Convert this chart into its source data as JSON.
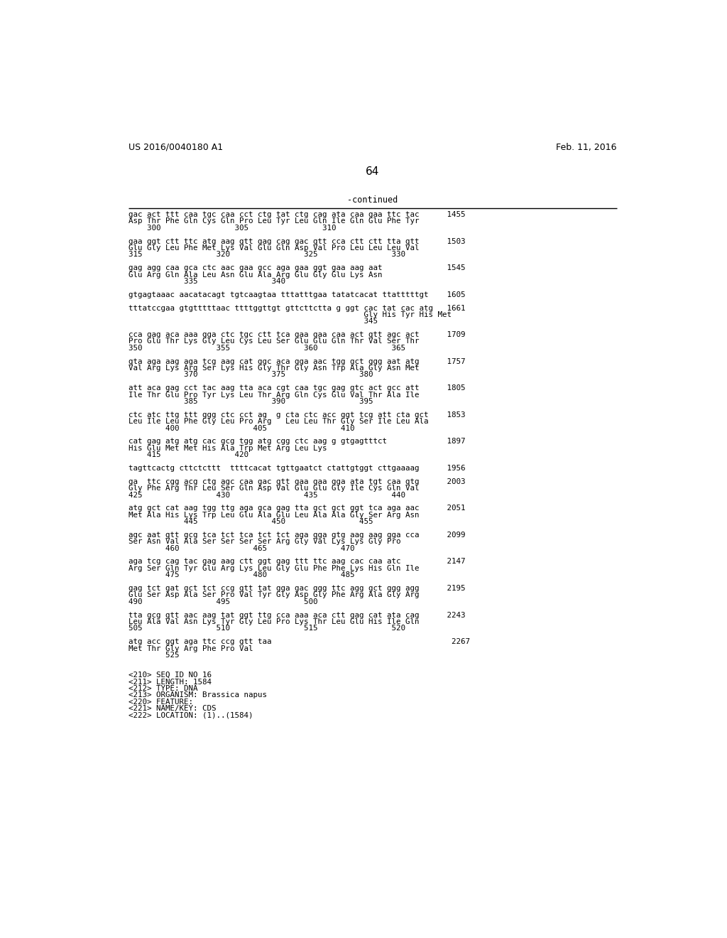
{
  "header_left": "US 2016/0040180 A1",
  "header_right": "Feb. 11, 2016",
  "page_number": "64",
  "continued_label": "-continued",
  "background_color": "#ffffff",
  "text_color": "#000000",
  "content_lines": [
    "gac act ttt caa tgc caa cct ctg tat ctg cag ata caa gaa ttc tac      1455",
    "Asp Thr Phe Gln Cys Gln Pro Leu Tyr Leu Gln Ile Gln Glu Phe Tyr",
    "    300                305                310",
    "",
    "gaa ggt ctt ttc atg aag gtt gag cag gac gtt cca ctt ctt tta gtt      1503",
    "Glu Gly Leu Phe Met Lys Val Glu Gln Asp Val Pro Leu Leu Leu Val",
    "315                320                325                330",
    "",
    "gag agg caa gca ctc aac gaa gcc aga gaa ggt gaa aag aat              1545",
    "Glu Arg Gln Ala Leu Asn Glu Ala Arg Glu Gly Glu Lys Asn",
    "            335                340",
    "",
    "gtgagtaaac aacatacagt tgtcaagtaa tttatttgaa tatatcacat ttatttttgt    1605",
    "",
    "tttatccgaa gtgtttttaac ttttggttgt gttcttctta g ggt cac tat cac atg   1661",
    "                                                   Gly His Tyr His Met",
    "                                                   345",
    "",
    "cca gag aca aaa gga ctc tgc ctt tca gaa gaa caa act gtt agc act      1709",
    "Pro Glu Thr Lys Gly Leu Cys Leu Ser Glu Glu Gln Thr Val Ser Thr",
    "350                355                360                365",
    "",
    "gta aga aag aga tcg aag cat ggc aca gga aac tgg gct ggg aat atg      1757",
    "Val Arg Lys Arg Ser Lys His Gly Thr Gly Asn Trp Ala Gly Asn Met",
    "            370                375                380",
    "",
    "att aca gag cct tac aag tta aca cgt caa tgc gag gtc act gcc att      1805",
    "Ile Thr Glu Pro Tyr Lys Leu Thr Arg Gln Cys Glu Val Thr Ala Ile",
    "            385                390                395",
    "",
    "ctc atc ttg ttt ggg ctc cct ag  g cta ctc acc ggt tcg att cta gct    1853",
    "Leu Ile Leu Phe Gly Leu Pro Arg   Leu Leu Thr Gly Ser Ile Leu Ala",
    "        400                405                410",
    "",
    "cat gag atg atg cac gcg tgg atg cgg ctc aag g gtgagtttct             1897",
    "His Glu Met Met His Ala Trp Met Arg Leu Lys",
    "    415                420",
    "",
    "tagttcactg cttctcttt  ttttcacat tgttgaatct ctattgtggt cttgaaaag      1956",
    "",
    "ga  ttc cgg acg ctg agc caa gac gtt gaa gaa gga ata tgt caa gtg      2003",
    "Gly Phe Arg Thr Leu Ser Gln Asp Val Glu Glu Gly Ile Cys Gln Val",
    "425                430                435                440",
    "",
    "atg gct cat aag tgg ttg aga gca gag tta gct gct ggt tca aga aac      2051",
    "Met Ala His Lys Trp Leu Glu Ala Glu Leu Ala Ala Gly Ser Arg Asn",
    "            445                450                455",
    "",
    "agc aat gtt gcg tca tct tca tct tct aga gga gtg aag aag gga cca      2099",
    "Ser Asn Val Ala Ser Ser Ser Ser Arg Gly Val Lys Lys Gly Pro",
    "        460                465                470",
    "",
    "aga tcg cag tac gag aag ctt ggt gag ttt ttc aag cac caa atc          2147",
    "Arg Ser Gln Tyr Glu Arg Lys Leu Gly Glu Phe Phe Lys His Gln Ile",
    "        475                480                485",
    "",
    "gag tct gat gct tct ccg gtt tat gga gac ggg ttc agg gct ggg agg      2195",
    "Glu Ser Asp Ala Ser Pro Val Tyr Gly Asp Gly Phe Arg Ala Gly Arg",
    "490                495                500",
    "",
    "tta gcg gtt aac aag tat ggt ttg cca aaa aca ctt gag cat ata cag      2243",
    "Leu Ala Val Asn Lys Tyr Gly Leu Pro Lys Thr Leu Glu His Ile Gln",
    "505                510                515                520",
    "",
    "atg acc ggt aga ttc ccg gtt taa                                       2267",
    "Met Thr Gly Arg Phe Pro Val",
    "        525",
    "",
    "",
    "<210> SEQ ID NO 16",
    "<211> LENGTH: 1584",
    "<212> TYPE: DNA",
    "<213> ORGANISM: Brassica napus",
    "<220> FEATURE:",
    "<221> NAME/KEY: CDS",
    "<222> LOCATION: (1)..(1584)"
  ]
}
